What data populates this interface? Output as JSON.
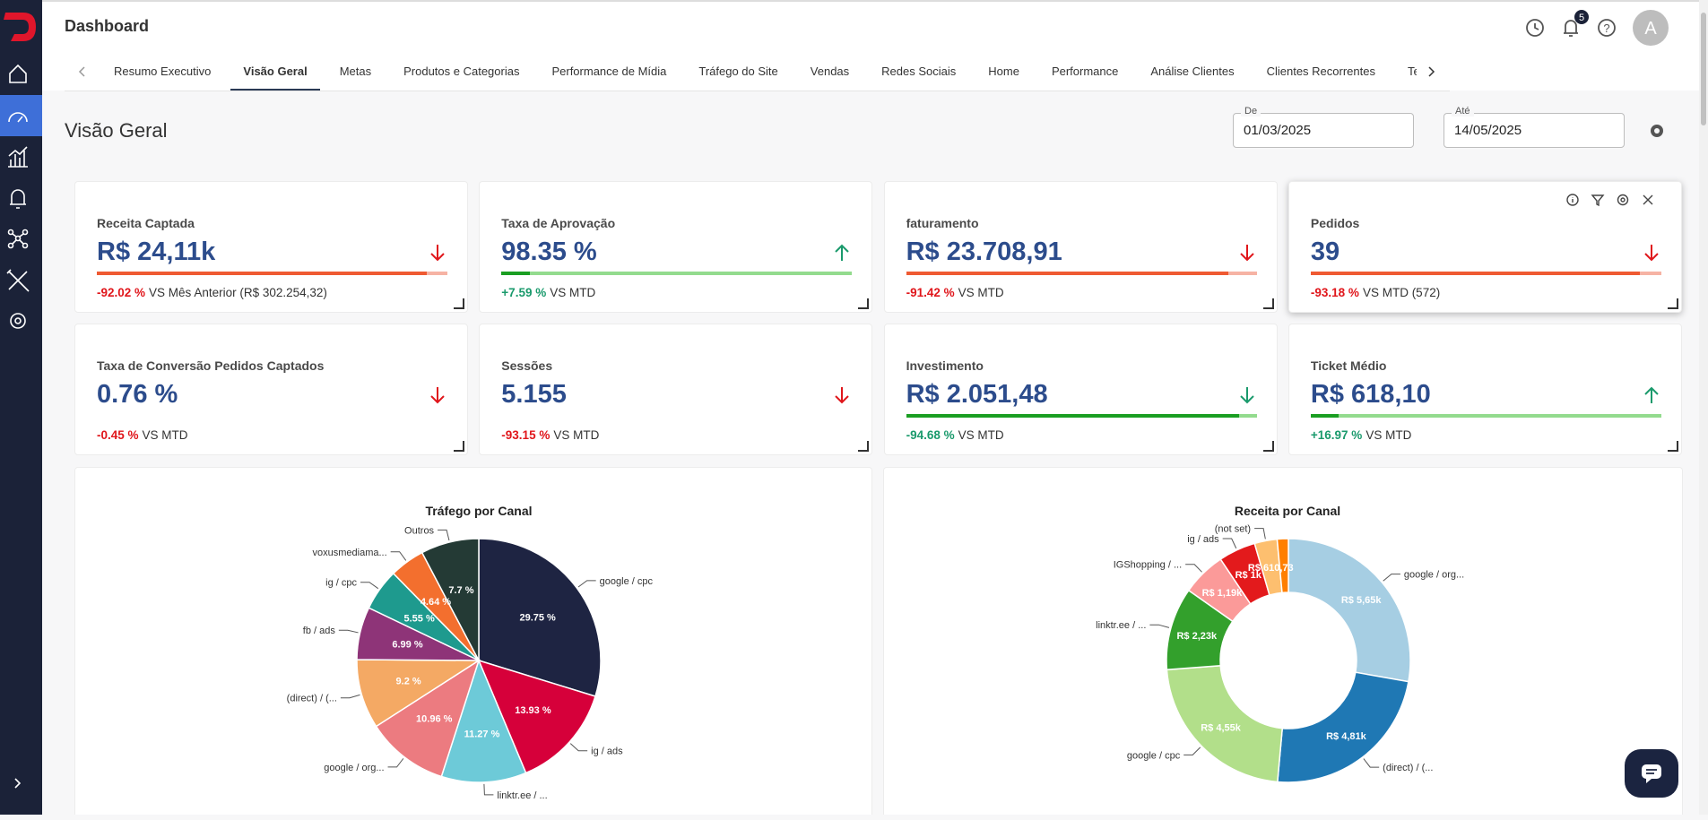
{
  "header": {
    "title": "Dashboard",
    "notifications": "5",
    "avatar": "A"
  },
  "tabs": {
    "items": [
      "Resumo Executivo",
      "Visão Geral",
      "Metas",
      "Produtos e Categorias",
      "Performance de Mídia",
      "Tráfego do Site",
      "Vendas",
      "Redes Sociais",
      "Home",
      "Performance",
      "Análise Clientes",
      "Clientes Recorrentes",
      "Te"
    ],
    "active": 1
  },
  "page_title": "Visão Geral",
  "filters": [
    {
      "label": "De",
      "value": "01/03/2025"
    },
    {
      "label": "Até",
      "value": "14/05/2025"
    }
  ],
  "kpis": [
    {
      "title": "Receita Captada",
      "value": "R$ 24,11k",
      "change": "-92.02 %",
      "comparison": "VS Mês Anterior (R$ 302.254,32)",
      "arrow": "down",
      "color": "#e0161b",
      "bar": {
        "fill": 0.94,
        "color": "#ef5a32",
        "track": "#f6b3a4"
      }
    },
    {
      "title": "Taxa de Aprovação",
      "value": "98.35 %",
      "change": "+7.59 %",
      "comparison": "VS MTD",
      "arrow": "up",
      "color": "#1a9a6c",
      "bar": {
        "fill": 0.08,
        "color": "#1a9e22",
        "track": "#93db8e"
      }
    },
    {
      "title": "faturamento",
      "value": "R$ 23.708,91",
      "change": "-91.42 %",
      "comparison": "VS MTD",
      "arrow": "down",
      "color": "#e0161b",
      "bar": {
        "fill": 0.92,
        "color": "#ef5a32",
        "track": "#f6b3a4"
      }
    },
    {
      "title": "Pedidos",
      "value": "39",
      "change": "-93.18 %",
      "comparison": "VS MTD (572)",
      "arrow": "down",
      "color": "#e0161b",
      "bar": {
        "fill": 0.94,
        "color": "#ef5a32",
        "track": "#f6b3a4"
      }
    },
    {
      "title": "Taxa de Conversão Pedidos Captados",
      "value": "0.76 %",
      "change": "-0.45 %",
      "comparison": "VS MTD",
      "arrow": "down",
      "color": "#e0161b"
    },
    {
      "title": "Sessões",
      "value": "5.155",
      "change": "-93.15 %",
      "comparison": "VS MTD",
      "arrow": "down",
      "color": "#e0161b"
    },
    {
      "title": "Investimento",
      "value": "R$ 2.051,48",
      "change": "-94.68 %",
      "comparison": "VS MTD",
      "arrow": "down",
      "color": "#1a9a6c",
      "bar": {
        "fill": 0.95,
        "color": "#1a9e22",
        "track": "#93db8e"
      }
    },
    {
      "title": "Ticket Médio",
      "value": "R$ 618,10",
      "change": "+16.97 %",
      "comparison": "VS MTD",
      "arrow": "up",
      "color": "#1a9a6c",
      "bar": {
        "fill": 0.08,
        "color": "#1a9e22",
        "track": "#93db8e"
      }
    }
  ],
  "chart_data": [
    {
      "type": "pie",
      "title": "Tráfego por Canal",
      "categories": [
        "google / cpc",
        "ig / ads",
        "linktr.ee / ...",
        "google / org...",
        "(direct) / (...",
        "fb / ads",
        "ig / cpc",
        "voxusmediama...",
        "Outros"
      ],
      "values": [
        29.75,
        13.93,
        11.27,
        10.96,
        9.2,
        6.99,
        5.55,
        4.64,
        7.7
      ],
      "value_labels": [
        "29.75 %",
        "13.93 %",
        "11.27 %",
        "10.96 %",
        "9.2 %",
        "6.99 %",
        "5.55 %",
        "4.64 %",
        "7.7 %"
      ],
      "colors": [
        "#1e2442",
        "#d6003a",
        "#6dcad8",
        "#ec7b80",
        "#f4a964",
        "#8e3478",
        "#1e9a8e",
        "#f36f2e",
        "#243a35"
      ]
    },
    {
      "type": "donut",
      "title": "Receita por Canal",
      "categories": [
        "google / org...",
        "(direct) / (...",
        "google / cpc",
        "linktr.ee / ...",
        "IGShopping / ...",
        "ig / ads",
        "(not set)",
        null
      ],
      "values": [
        5650,
        4810,
        4550,
        2230,
        1190,
        1000,
        610.73,
        300
      ],
      "value_labels": [
        "R$ 5,65k",
        "R$ 4,81k",
        "R$ 4,55k",
        "R$ 2,23k",
        "R$ 1,19k",
        "R$ 1k",
        "R$ 610,73",
        null
      ],
      "colors": [
        "#a6cee3",
        "#1f78b4",
        "#b2df8a",
        "#33a02c",
        "#fb9a99",
        "#e31a1c",
        "#fdbf6f",
        "#ff7f00"
      ]
    }
  ]
}
